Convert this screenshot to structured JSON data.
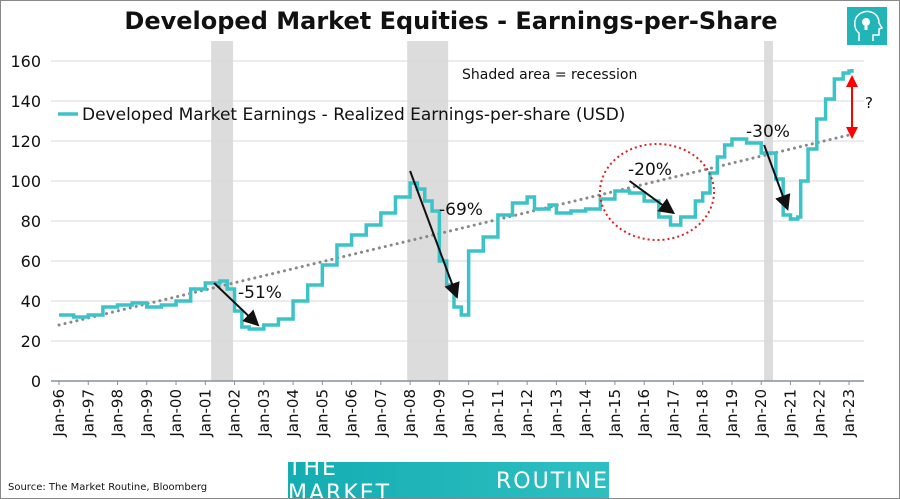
{
  "chart_data": {
    "type": "line",
    "title": "Developed Market Equities - Earnings-per-Share",
    "series": [
      {
        "name": "Developed Market Earnings - Realized Earnings-per-share (USD)",
        "color": "#3cc3c8",
        "x": [
          1996.0,
          1996.5,
          1997.0,
          1997.5,
          1998.0,
          1998.5,
          1999.0,
          1999.5,
          2000.0,
          2000.5,
          2001.0,
          2001.5,
          2001.75,
          2002.0,
          2002.25,
          2002.5,
          2003.0,
          2003.5,
          2004.0,
          2004.5,
          2005.0,
          2005.5,
          2006.0,
          2006.5,
          2007.0,
          2007.5,
          2008.0,
          2008.25,
          2008.5,
          2008.75,
          2009.0,
          2009.25,
          2009.5,
          2009.75,
          2010.0,
          2010.5,
          2011.0,
          2011.5,
          2012.0,
          2012.25,
          2012.75,
          2013.0,
          2013.5,
          2014.0,
          2014.5,
          2015.0,
          2015.5,
          2016.0,
          2016.5,
          2016.9,
          2017.25,
          2017.75,
          2018.0,
          2018.25,
          2018.5,
          2018.75,
          2019.0,
          2019.5,
          2020.0,
          2020.3,
          2020.5,
          2020.75,
          2021.0,
          2021.25,
          2021.35,
          2021.6,
          2021.9,
          2022.2,
          2022.5,
          2022.8,
          2023.0,
          2023.1
        ],
        "values": [
          33,
          32,
          33,
          37,
          38,
          39,
          37,
          38,
          40,
          46,
          49,
          50,
          46,
          35,
          27,
          26,
          28,
          31,
          40,
          48,
          58,
          68,
          73,
          78,
          84,
          92,
          99,
          96,
          90,
          85,
          60,
          48,
          37,
          33,
          65,
          72,
          83,
          89,
          92,
          86,
          88,
          84,
          85,
          86,
          91,
          95,
          94,
          90,
          82,
          78,
          82,
          90,
          94,
          104,
          112,
          118,
          121,
          119,
          114,
          114,
          101,
          83,
          81,
          82,
          100,
          116,
          131,
          141,
          151,
          154,
          155,
          156
        ]
      }
    ],
    "trendline": {
      "style": "dotted",
      "color": "#888888",
      "x": [
        1996,
        2023
      ],
      "values": [
        28,
        123
      ]
    },
    "recessions": [
      [
        2001.2,
        2001.95
      ],
      [
        2007.9,
        2009.3
      ],
      [
        2020.1,
        2020.4
      ]
    ],
    "recession_note": "Shaded area = recession",
    "annotations": [
      {
        "text": "-51%",
        "from": [
          2001.3,
          49
        ],
        "to": [
          2002.8,
          28
        ]
      },
      {
        "text": "-69%",
        "from": [
          2008.0,
          105
        ],
        "to": [
          2009.6,
          42
        ]
      },
      {
        "text": "-20%",
        "from": [
          2015.5,
          100
        ],
        "to": [
          2017.0,
          84
        ]
      },
      {
        "text": "-30%",
        "from": [
          2020.1,
          118
        ],
        "to": [
          2020.9,
          86
        ]
      }
    ],
    "gap_marker": {
      "text": "?",
      "color": "#ff0000",
      "x": 2023.3,
      "from": 124,
      "to": 155
    },
    "circle_color": "#e02020",
    "ylim": [
      0,
      160
    ],
    "yticks": [
      0,
      20,
      40,
      60,
      80,
      100,
      120,
      140,
      160
    ],
    "xticks": [
      "Jan-96",
      "Jan-97",
      "Jan-98",
      "Jan-99",
      "Jan-00",
      "Jan-01",
      "Jan-02",
      "Jan-03",
      "Jan-04",
      "Jan-05",
      "Jan-06",
      "Jan-07",
      "Jan-08",
      "Jan-09",
      "Jan-10",
      "Jan-11",
      "Jan-12",
      "Jan-13",
      "Jan-14",
      "Jan-15",
      "Jan-16",
      "Jan-17",
      "Jan-18",
      "Jan-19",
      "Jan-20",
      "Jan-21",
      "Jan-22",
      "Jan-23"
    ],
    "grid": true,
    "legend": "top-left"
  },
  "footer": {
    "source": "Source: The Market Routine, Bloomberg",
    "brand_left": "THE MARKET",
    "brand_right": "ROUTINE"
  },
  "logo": "head-lightbulb-icon"
}
